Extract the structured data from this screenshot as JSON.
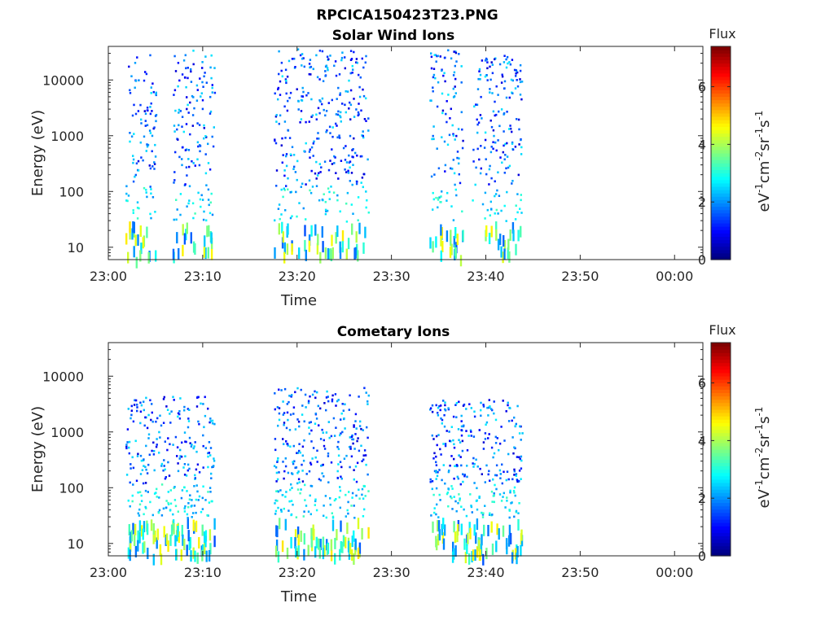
{
  "figure_title": "RPCICA150423T23.PNG",
  "colorbar": {
    "title": "Flux",
    "label": "eV-1cm-2sr-1s-1",
    "range": [
      0,
      7.4
    ],
    "ticks": [
      0,
      2,
      4,
      6
    ],
    "colormap": "jet"
  },
  "chart_data": [
    {
      "type": "heatmap",
      "title": "Solar Wind Ions",
      "xlabel": "Time",
      "ylabel": "Energy (eV)",
      "x_ticks": [
        "23:00",
        "23:10",
        "23:20",
        "23:30",
        "23:40",
        "23:50",
        "00:00"
      ],
      "x_tick_minutes": [
        0,
        10,
        20,
        30,
        40,
        50,
        60
      ],
      "xlim_minutes": [
        0,
        63
      ],
      "y_scale": "log",
      "ylim": [
        6,
        40000
      ],
      "y_ticks": [
        10,
        100,
        1000,
        10000
      ],
      "y_tick_labels": [
        "10",
        "100",
        "1000",
        "10000"
      ],
      "bursts": [
        {
          "start_min": 1.8,
          "end_min": 5.0,
          "emin": 6,
          "emax": 30000
        },
        {
          "start_min": 6.8,
          "end_min": 11.2,
          "emin": 8,
          "emax": 38000
        },
        {
          "start_min": 17.5,
          "end_min": 27.5,
          "emin": 8,
          "emax": 38000
        },
        {
          "start_min": 34.0,
          "end_min": 37.5,
          "emin": 6,
          "emax": 38000
        },
        {
          "start_min": 38.5,
          "end_min": 43.8,
          "emin": 8,
          "emax": 30000
        }
      ]
    },
    {
      "type": "heatmap",
      "title": "Cometary Ions",
      "xlabel": "Time",
      "ylabel": "Energy (eV)",
      "x_ticks": [
        "23:00",
        "23:10",
        "23:20",
        "23:30",
        "23:40",
        "23:50",
        "00:00"
      ],
      "x_tick_minutes": [
        0,
        10,
        20,
        30,
        40,
        50,
        60
      ],
      "xlim_minutes": [
        0,
        63
      ],
      "y_scale": "log",
      "ylim": [
        6,
        40000
      ],
      "y_ticks": [
        10,
        100,
        1000,
        10000
      ],
      "y_tick_labels": [
        "10",
        "100",
        "1000",
        "10000"
      ],
      "bursts": [
        {
          "start_min": 1.8,
          "end_min": 11.2,
          "emin": 6,
          "emax": 4500
        },
        {
          "start_min": 17.5,
          "end_min": 27.5,
          "emin": 6,
          "emax": 7000
        },
        {
          "start_min": 34.0,
          "end_min": 43.8,
          "emin": 6,
          "emax": 4000
        }
      ]
    }
  ]
}
